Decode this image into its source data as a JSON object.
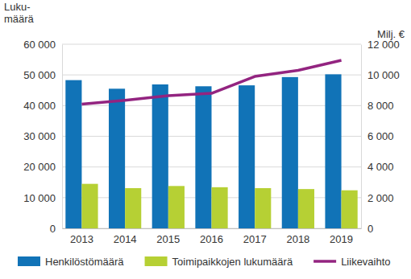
{
  "chart_data": {
    "type": "bar",
    "categories": [
      "2013",
      "2014",
      "2015",
      "2016",
      "2017",
      "2018",
      "2019"
    ],
    "ylabel": "Luku-\nmäärä",
    "y2label": "Milj. €",
    "ylim": [
      0,
      60000
    ],
    "yticks": [
      0,
      {
        "value": 10000,
        "label": "10 000"
      },
      {
        "value": 20000,
        "label": "20 000"
      },
      {
        "value": 30000,
        "label": "30 000"
      },
      {
        "value": 40000,
        "label": "40 000"
      },
      {
        "value": 50000,
        "label": "50 000"
      },
      {
        "value": 60000,
        "label": "60 000"
      }
    ],
    "y2lim": [
      0,
      12000
    ],
    "y2ticks": [
      0,
      {
        "value": 2000,
        "label": "2 000"
      },
      {
        "value": 4000,
        "label": "4 000"
      },
      {
        "value": 6000,
        "label": "6 000"
      },
      {
        "value": 8000,
        "label": "8 000"
      },
      {
        "value": 10000,
        "label": "10 000"
      },
      {
        "value": 12000,
        "label": "12 000"
      }
    ],
    "grid": true,
    "legend": "bottom",
    "series": [
      {
        "name": "Henkilöstömäärä",
        "type": "bar",
        "color": "#1173b7",
        "values": [
          48300,
          45500,
          46900,
          46300,
          46600,
          49300,
          50200
        ]
      },
      {
        "name": "Toimipaikkojen lukumäärä",
        "type": "bar",
        "color": "#b6d034",
        "values": [
          14500,
          13100,
          13800,
          13400,
          13100,
          12800,
          12400
        ]
      },
      {
        "name": "Liikevaihto",
        "type": "line",
        "axis": "y2",
        "color": "#932480",
        "values": [
          8100,
          8350,
          8650,
          8800,
          9900,
          10300,
          10950
        ]
      }
    ]
  }
}
